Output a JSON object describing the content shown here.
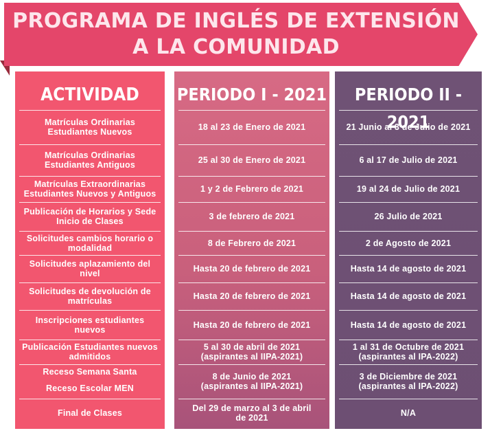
{
  "title": {
    "line1": "PROGRAMA DE INGLÉS DE EXTENSIÓN",
    "line2": "A LA COMUNIDAD"
  },
  "headers": {
    "actividad": "ACTIVIDAD",
    "periodo1": "PERIODO I - 2021",
    "periodo2": "PERIODO II - 2021"
  },
  "rows": [
    {
      "actividad": [
        "Matrículas Ordinarias",
        "Estudiantes Nuevos"
      ],
      "p1": [
        "18 al 23 de Enero de 2021"
      ],
      "p2": [
        "21 Junio al 3 de Julio de 2021"
      ]
    },
    {
      "actividad": [
        "Matrículas Ordinarias",
        "Estudiantes Antiguos"
      ],
      "p1": [
        "25 al 30 de Enero de 2021"
      ],
      "p2": [
        "6 al 17 de Julio de 2021"
      ]
    },
    {
      "actividad": [
        "Matrículas Extraordinarias",
        "Estudiantes Nuevos y Antiguos"
      ],
      "p1": [
        "1 y 2 de Febrero de 2021"
      ],
      "p2": [
        "19 al 24 de Julio de 2021"
      ]
    },
    {
      "actividad": [
        "Publicación de Horarios y Sede",
        "Inicio de Clases"
      ],
      "p1": [
        "3 de febrero de 2021"
      ],
      "p2": [
        "26 Julio de 2021"
      ]
    },
    {
      "actividad": [
        "Solicitudes cambios horario o",
        "modalidad"
      ],
      "p1": [
        "8 de Febrero de 2021"
      ],
      "p2": [
        "2 de Agosto de 2021"
      ]
    },
    {
      "actividad": [
        "Solicitudes aplazamiento del",
        "nivel"
      ],
      "p1": [
        "Hasta 20 de febrero de 2021"
      ],
      "p2": [
        "Hasta 14 de agosto de 2021"
      ]
    },
    {
      "actividad": [
        "Solicitudes de devolución de",
        "matrículas"
      ],
      "p1": [
        "Hasta 20 de febrero de 2021"
      ],
      "p2": [
        "Hasta 14 de agosto de 2021"
      ]
    },
    {
      "actividad": [
        "Inscripciones estudiantes",
        "nuevos"
      ],
      "p1": [
        "Hasta 20 de febrero de 2021"
      ],
      "p2": [
        "Hasta 14 de agosto de 2021"
      ]
    },
    {
      "actividad": [
        "Publicación Estudiantes nuevos",
        "admitidos"
      ],
      "p1": [
        "5 al 30 de abril de 2021",
        "(aspirantes al IIPA-2021)"
      ],
      "p2": [
        "1 al 31 de Octubre de 2021",
        "(aspirantes al IPA-2022)"
      ]
    },
    {
      "actividad": [
        "Receso Semana Santa",
        "",
        "Receso Escolar MEN"
      ],
      "p1": [
        "8 de Junio de 2021",
        "(aspirantes al IIPA-2021)"
      ],
      "p2": [
        "3 de Diciembre de 2021",
        "(aspirantes al IPA-2022)"
      ]
    },
    {
      "actividad": [
        "Final de Clases"
      ],
      "p1": [
        "Del 29 de marzo al 3 de abril",
        "de 2021"
      ],
      "p2": [
        "N/A"
      ]
    }
  ]
}
